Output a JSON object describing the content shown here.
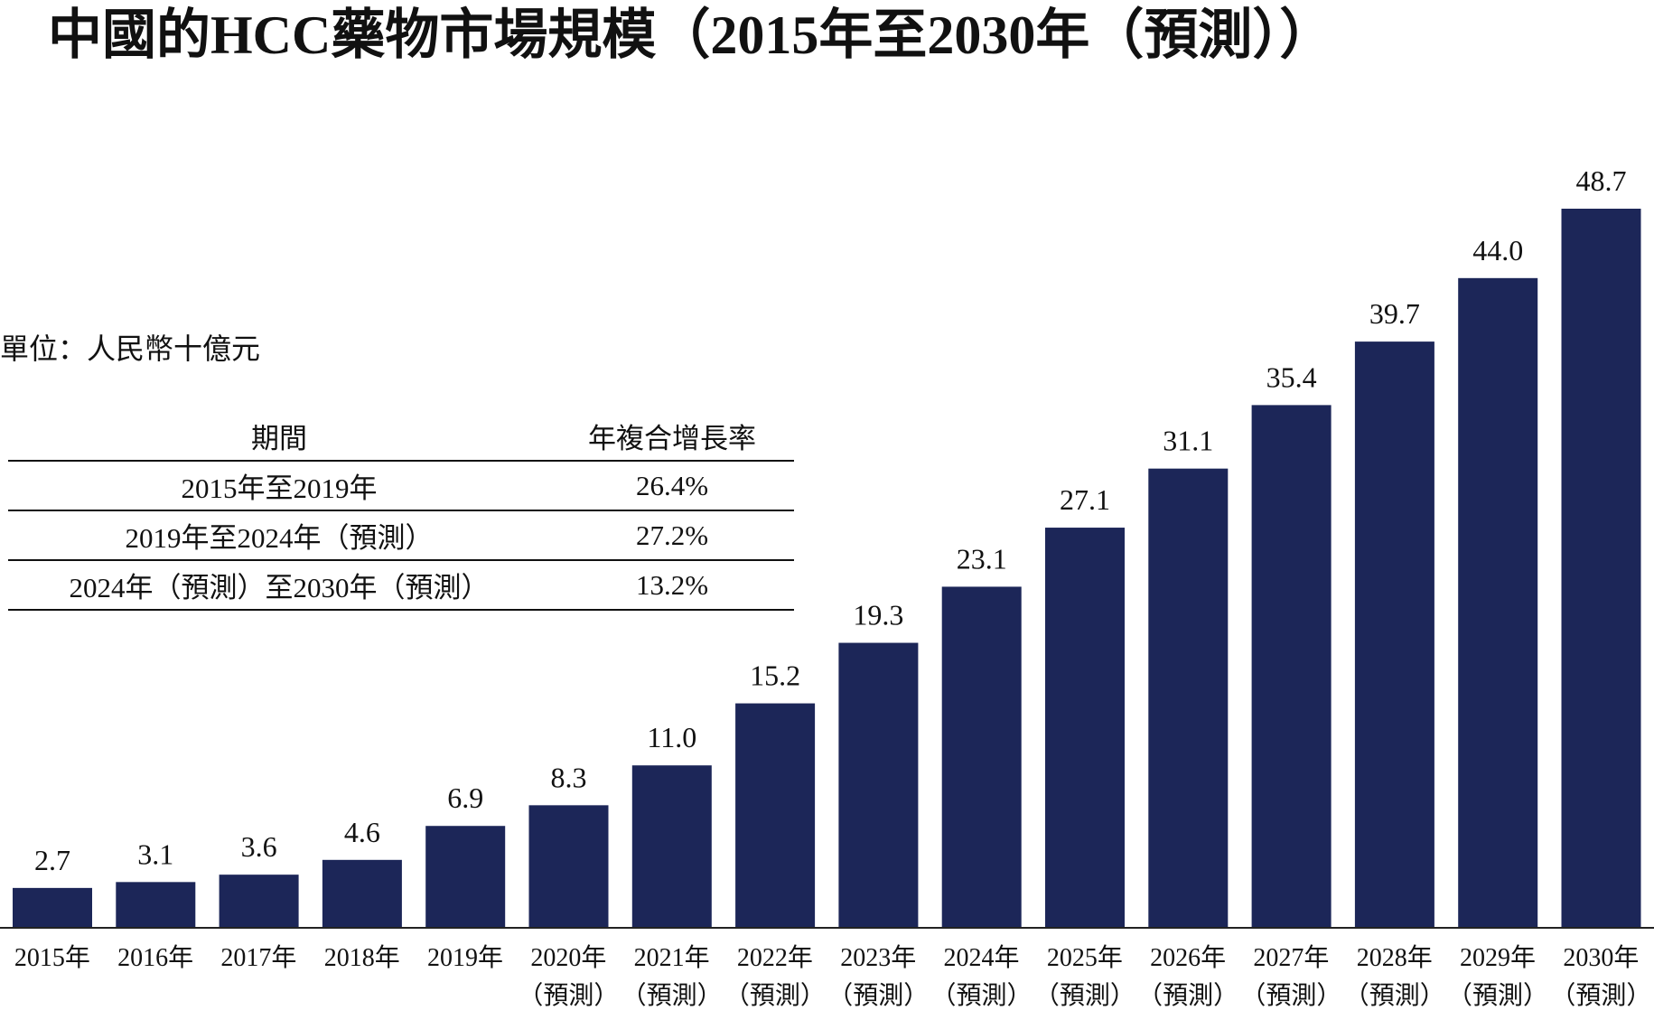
{
  "chart_data": {
    "type": "bar",
    "title": "中國的HCC藥物市場規模（2015年至2030年（預測））",
    "unit_note": "單位：人民幣十億元",
    "categories": [
      "2015年",
      "2016年",
      "2017年",
      "2018年",
      "2019年",
      "2020年\n（預測）",
      "2021年\n（預測）",
      "2022年\n（預測）",
      "2023年\n（預測）",
      "2024年\n（預測）",
      "2025年\n（預測）",
      "2026年\n（預測）",
      "2027年\n（預測）",
      "2028年\n（預測）",
      "2029年\n（預測）",
      "2030年\n（預測）"
    ],
    "values": [
      2.7,
      3.1,
      3.6,
      4.6,
      6.9,
      8.3,
      11.0,
      15.2,
      19.3,
      23.1,
      27.1,
      31.1,
      35.4,
      39.7,
      44.0,
      48.7
    ],
    "value_labels": [
      "2.7",
      "3.1",
      "3.6",
      "4.6",
      "6.9",
      "8.3",
      "11.0",
      "15.2",
      "19.3",
      "23.1",
      "27.1",
      "31.1",
      "35.4",
      "39.7",
      "44.0",
      "48.7"
    ],
    "color": "#1c2658",
    "cagr_table": {
      "header": [
        "期間",
        "年複合增長率"
      ],
      "rows": [
        [
          "2015年至2019年",
          "26.4%"
        ],
        [
          "2019年至2024年（預測）",
          "27.2%"
        ],
        [
          "2024年（預測）至2030年（預測）",
          "13.2%"
        ]
      ]
    }
  }
}
